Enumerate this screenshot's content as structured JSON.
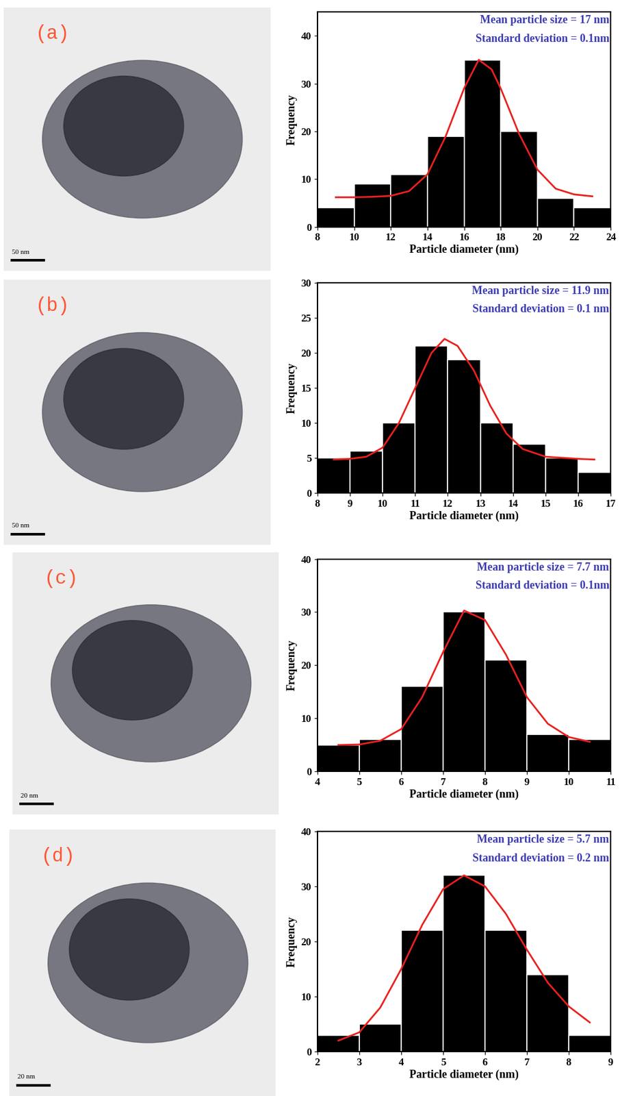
{
  "chart_data": [
    {
      "type": "histogram",
      "image_label": "(a)",
      "scale_bar": "50 nm",
      "annotations": [
        "Mean particle size = 17 nm",
        "Standard deviation = 0.1nm"
      ],
      "x_label": "Particle diameter (nm)",
      "y_label": "Frequency",
      "bins": [
        8,
        10,
        12,
        14,
        16,
        18,
        20,
        22,
        24
      ],
      "counts": [
        4,
        9,
        11,
        19,
        35,
        20,
        6,
        4
      ],
      "color": "#000000",
      "fit": {
        "x": [
          9,
          10,
          11,
          12,
          13,
          14,
          15,
          16,
          16.8,
          17.5,
          18,
          19,
          20,
          21,
          22,
          23
        ],
        "values": [
          6.2,
          6.2,
          6.3,
          6.5,
          7.5,
          11,
          19,
          29,
          35,
          33,
          29,
          19.5,
          12,
          8,
          6.8,
          6.4
        ],
        "color": "#e8211e"
      },
      "xlim": [
        8,
        24
      ],
      "xticks": [
        8,
        10,
        12,
        14,
        16,
        18,
        20,
        22,
        24
      ],
      "ylim": [
        0,
        45
      ],
      "yticks": [
        0,
        10,
        20,
        30,
        40
      ]
    },
    {
      "type": "histogram",
      "image_label": "(b)",
      "scale_bar": "50 nm",
      "annotations": [
        "Mean particle size = 11.9 nm",
        "Standard deviation = 0.1 nm"
      ],
      "x_label": "Particle diameter (nm)",
      "y_label": "Frequency",
      "bins": [
        8,
        9,
        10,
        11,
        12,
        13,
        14,
        15,
        16,
        17
      ],
      "counts": [
        5,
        6,
        10,
        21,
        19,
        10,
        7,
        5,
        3
      ],
      "color": "#000000",
      "fit": {
        "x": [
          8.5,
          9,
          9.5,
          10,
          10.5,
          11,
          11.5,
          11.9,
          12.3,
          12.8,
          13.3,
          13.8,
          14.3,
          15,
          16,
          16.5
        ],
        "values": [
          4.8,
          4.9,
          5.2,
          6.5,
          10,
          15,
          20,
          22,
          21,
          17.5,
          12.5,
          8.5,
          6.3,
          5.2,
          4.9,
          4.8
        ],
        "color": "#e8211e"
      },
      "xlim": [
        8,
        17
      ],
      "xticks": [
        8,
        9,
        10,
        11,
        12,
        13,
        14,
        15,
        16,
        17
      ],
      "ylim": [
        0,
        30
      ],
      "yticks": [
        0,
        5,
        10,
        15,
        20,
        25,
        30
      ]
    },
    {
      "type": "histogram",
      "image_label": "(c)",
      "scale_bar": "20 nm",
      "annotations": [
        "Mean particle size = 7.7 nm",
        "Standard deviation = 0.1nm"
      ],
      "x_label": "Particle diameter (nm)",
      "y_label": "Frequency",
      "bins": [
        4,
        5,
        6,
        7,
        8,
        9,
        10,
        11
      ],
      "counts": [
        5,
        6,
        16,
        30,
        21,
        7,
        6
      ],
      "color": "#000000",
      "fit": {
        "x": [
          4.5,
          5,
          5.5,
          6,
          6.5,
          7,
          7.5,
          8,
          8.5,
          9,
          9.5,
          10,
          10.5
        ],
        "values": [
          5,
          5.1,
          5.8,
          8,
          14,
          22.5,
          30.3,
          28.5,
          22,
          14,
          9,
          6.5,
          5.6
        ],
        "color": "#e8211e"
      },
      "xlim": [
        4,
        11
      ],
      "xticks": [
        4,
        5,
        6,
        7,
        8,
        9,
        10,
        11
      ],
      "ylim": [
        0,
        40
      ],
      "yticks": [
        0,
        10,
        20,
        30,
        40
      ]
    },
    {
      "type": "histogram",
      "image_label": "(d)",
      "scale_bar": "20 nm",
      "annotations": [
        "Mean particle size = 5.7 nm",
        "Standard deviation = 0.2 nm"
      ],
      "x_label": "Particle diameter (nm)",
      "y_label": "Frequency",
      "bins": [
        2,
        3,
        4,
        5,
        6,
        7,
        8,
        9
      ],
      "counts": [
        3,
        5,
        22,
        32,
        22,
        14,
        3
      ],
      "color": "#000000",
      "fit": {
        "x": [
          2.5,
          3,
          3.5,
          4,
          4.5,
          5,
          5.5,
          6,
          6.5,
          7,
          7.5,
          8,
          8.5
        ],
        "values": [
          2,
          3.5,
          8,
          15,
          23,
          29.5,
          32,
          30,
          25,
          18.5,
          12.5,
          8.2,
          5.3
        ],
        "color": "#e8211e"
      },
      "xlim": [
        2,
        9
      ],
      "xticks": [
        2,
        3,
        4,
        5,
        6,
        7,
        8,
        9
      ],
      "ylim": [
        0,
        40
      ],
      "yticks": [
        0,
        10,
        20,
        30,
        40
      ]
    }
  ]
}
